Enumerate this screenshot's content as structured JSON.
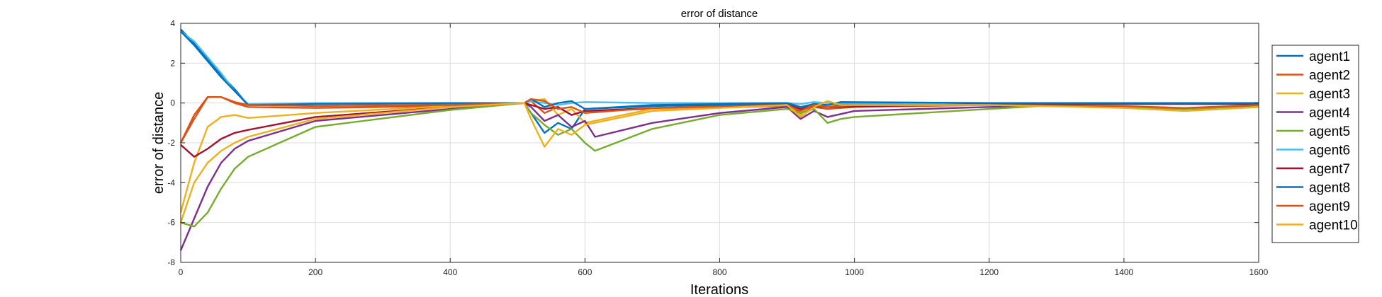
{
  "chart_data": {
    "type": "line",
    "title": "error of distance",
    "xlabel": "Iterations",
    "ylabel": "error of distance",
    "xlim": [
      0,
      1600
    ],
    "ylim": [
      -8,
      4
    ],
    "xticks": [
      "0",
      "200",
      "400",
      "600",
      "800",
      "1000",
      "1200",
      "1400",
      "1600"
    ],
    "yticks": [
      "4",
      "2",
      "0",
      "-2",
      "-4",
      "-6",
      "-8"
    ],
    "grid": true,
    "legend_position": "right",
    "series": [
      {
        "name": "agent1",
        "color": "#0072BD",
        "points": [
          [
            0,
            3.7
          ],
          [
            20,
            3.0
          ],
          [
            40,
            2.2
          ],
          [
            60,
            1.4
          ],
          [
            80,
            0.7
          ],
          [
            100,
            -0.1
          ],
          [
            200,
            -0.05
          ],
          [
            400,
            -0.02
          ],
          [
            510,
            0.0
          ],
          [
            520,
            -0.5
          ],
          [
            540,
            -1.5
          ],
          [
            560,
            -1.0
          ],
          [
            580,
            -1.3
          ],
          [
            600,
            -0.3
          ],
          [
            700,
            -0.15
          ],
          [
            900,
            -0.05
          ],
          [
            920,
            -0.3
          ],
          [
            940,
            -0.1
          ],
          [
            960,
            -0.2
          ],
          [
            980,
            -0.05
          ],
          [
            1200,
            0.0
          ],
          [
            1400,
            0.0
          ],
          [
            1600,
            0.0
          ]
        ]
      },
      {
        "name": "agent2",
        "color": "#D95319",
        "points": [
          [
            0,
            -2.0
          ],
          [
            20,
            -0.8
          ],
          [
            40,
            0.3
          ],
          [
            60,
            0.3
          ],
          [
            80,
            0.0
          ],
          [
            100,
            -0.2
          ],
          [
            200,
            -0.25
          ],
          [
            400,
            -0.15
          ],
          [
            510,
            0.0
          ],
          [
            520,
            0.1
          ],
          [
            540,
            -0.5
          ],
          [
            560,
            -0.2
          ],
          [
            580,
            -0.6
          ],
          [
            600,
            -0.4
          ],
          [
            700,
            -0.3
          ],
          [
            900,
            -0.15
          ],
          [
            920,
            -0.5
          ],
          [
            940,
            -0.2
          ],
          [
            960,
            -0.3
          ],
          [
            1000,
            -0.2
          ],
          [
            1200,
            -0.1
          ],
          [
            1400,
            -0.2
          ],
          [
            1490,
            -0.3
          ],
          [
            1600,
            -0.1
          ]
        ]
      },
      {
        "name": "agent3",
        "color": "#EDB120",
        "points": [
          [
            0,
            -5.5
          ],
          [
            20,
            -3.0
          ],
          [
            40,
            -1.2
          ],
          [
            60,
            -0.7
          ],
          [
            80,
            -0.6
          ],
          [
            100,
            -0.75
          ],
          [
            200,
            -0.5
          ],
          [
            400,
            -0.15
          ],
          [
            510,
            0.0
          ],
          [
            520,
            0.1
          ],
          [
            540,
            0.2
          ],
          [
            560,
            -0.6
          ],
          [
            580,
            -0.3
          ],
          [
            600,
            -1.0
          ],
          [
            700,
            -0.3
          ],
          [
            900,
            -0.1
          ],
          [
            920,
            -0.6
          ],
          [
            940,
            0.05
          ],
          [
            960,
            -0.2
          ],
          [
            980,
            0.05
          ],
          [
            1200,
            -0.05
          ],
          [
            1400,
            -0.2
          ],
          [
            1490,
            -0.4
          ],
          [
            1600,
            -0.2
          ]
        ]
      },
      {
        "name": "agent4",
        "color": "#7E2F8E",
        "points": [
          [
            0,
            -7.4
          ],
          [
            20,
            -5.8
          ],
          [
            40,
            -4.2
          ],
          [
            60,
            -3.0
          ],
          [
            80,
            -2.3
          ],
          [
            100,
            -1.9
          ],
          [
            200,
            -0.9
          ],
          [
            400,
            -0.3
          ],
          [
            510,
            0.0
          ],
          [
            520,
            -0.2
          ],
          [
            540,
            -0.9
          ],
          [
            560,
            -0.6
          ],
          [
            580,
            -1.2
          ],
          [
            600,
            -0.9
          ],
          [
            615,
            -1.7
          ],
          [
            700,
            -1.0
          ],
          [
            800,
            -0.5
          ],
          [
            900,
            -0.2
          ],
          [
            920,
            -0.8
          ],
          [
            940,
            -0.4
          ],
          [
            960,
            -0.7
          ],
          [
            1000,
            -0.4
          ],
          [
            1200,
            -0.2
          ],
          [
            1300,
            -0.1
          ],
          [
            1400,
            -0.2
          ],
          [
            1490,
            -0.3
          ],
          [
            1600,
            -0.2
          ]
        ]
      },
      {
        "name": "agent5",
        "color": "#77AC30",
        "points": [
          [
            0,
            -6.0
          ],
          [
            20,
            -6.2
          ],
          [
            40,
            -5.5
          ],
          [
            60,
            -4.3
          ],
          [
            80,
            -3.3
          ],
          [
            100,
            -2.7
          ],
          [
            200,
            -1.2
          ],
          [
            400,
            -0.35
          ],
          [
            510,
            0.0
          ],
          [
            520,
            -0.5
          ],
          [
            540,
            -1.1
          ],
          [
            560,
            -1.6
          ],
          [
            580,
            -1.3
          ],
          [
            600,
            -2.0
          ],
          [
            615,
            -2.4
          ],
          [
            700,
            -1.3
          ],
          [
            800,
            -0.6
          ],
          [
            900,
            -0.3
          ],
          [
            920,
            -0.5
          ],
          [
            940,
            -0.3
          ],
          [
            960,
            -1.0
          ],
          [
            980,
            -0.8
          ],
          [
            1000,
            -0.7
          ],
          [
            1200,
            -0.3
          ],
          [
            1300,
            -0.1
          ],
          [
            1400,
            -0.2
          ],
          [
            1490,
            -0.3
          ],
          [
            1600,
            -0.2
          ]
        ]
      },
      {
        "name": "agent6",
        "color": "#4DBEEE",
        "points": [
          [
            0,
            3.6
          ],
          [
            20,
            3.1
          ],
          [
            40,
            2.3
          ],
          [
            60,
            1.5
          ],
          [
            80,
            0.6
          ],
          [
            100,
            -0.05
          ],
          [
            200,
            0.0
          ],
          [
            400,
            0.0
          ],
          [
            510,
            0.0
          ],
          [
            520,
            0.1
          ],
          [
            540,
            0.0
          ],
          [
            560,
            -0.1
          ],
          [
            580,
            0.0
          ],
          [
            600,
            0.05
          ],
          [
            700,
            0.0
          ],
          [
            900,
            0.0
          ],
          [
            920,
            -0.05
          ],
          [
            940,
            0.05
          ],
          [
            960,
            0.0
          ],
          [
            1200,
            0.0
          ],
          [
            1600,
            0.0
          ]
        ]
      },
      {
        "name": "agent7",
        "color": "#A2142F",
        "points": [
          [
            0,
            -2.1
          ],
          [
            20,
            -2.7
          ],
          [
            40,
            -2.3
          ],
          [
            60,
            -1.8
          ],
          [
            80,
            -1.5
          ],
          [
            100,
            -1.35
          ],
          [
            200,
            -0.7
          ],
          [
            400,
            -0.2
          ],
          [
            510,
            0.0
          ],
          [
            520,
            -0.1
          ],
          [
            540,
            -0.3
          ],
          [
            560,
            -0.2
          ],
          [
            580,
            -0.6
          ],
          [
            600,
            -0.4
          ],
          [
            700,
            -0.25
          ],
          [
            900,
            -0.1
          ],
          [
            920,
            -0.3
          ],
          [
            940,
            -0.15
          ],
          [
            960,
            -0.2
          ],
          [
            1200,
            -0.05
          ],
          [
            1600,
            -0.05
          ]
        ]
      },
      {
        "name": "agent8",
        "color": "#0072BD",
        "points": [
          [
            0,
            3.6
          ],
          [
            20,
            2.9
          ],
          [
            40,
            2.1
          ],
          [
            60,
            1.3
          ],
          [
            80,
            0.6
          ],
          [
            100,
            -0.1
          ],
          [
            200,
            -0.05
          ],
          [
            400,
            0.0
          ],
          [
            510,
            0.0
          ],
          [
            520,
            0.2
          ],
          [
            540,
            -0.2
          ],
          [
            560,
            0.0
          ],
          [
            580,
            0.1
          ],
          [
            600,
            -0.3
          ],
          [
            700,
            -0.1
          ],
          [
            900,
            0.0
          ],
          [
            920,
            -0.2
          ],
          [
            940,
            -0.05
          ],
          [
            960,
            -0.1
          ],
          [
            980,
            0.05
          ],
          [
            1200,
            0.0
          ],
          [
            1600,
            0.0
          ]
        ]
      },
      {
        "name": "agent9",
        "color": "#D95319",
        "points": [
          [
            0,
            -2.0
          ],
          [
            20,
            -0.6
          ],
          [
            40,
            0.3
          ],
          [
            60,
            0.3
          ],
          [
            80,
            0.05
          ],
          [
            100,
            -0.1
          ],
          [
            200,
            -0.15
          ],
          [
            400,
            -0.1
          ],
          [
            510,
            0.0
          ],
          [
            520,
            0.2
          ],
          [
            540,
            0.1
          ],
          [
            560,
            -0.3
          ],
          [
            580,
            -0.2
          ],
          [
            600,
            -0.5
          ],
          [
            700,
            -0.25
          ],
          [
            900,
            -0.1
          ],
          [
            920,
            -0.4
          ],
          [
            940,
            -0.1
          ],
          [
            960,
            -0.2
          ],
          [
            1000,
            -0.1
          ],
          [
            1200,
            -0.1
          ],
          [
            1400,
            -0.15
          ],
          [
            1490,
            -0.25
          ],
          [
            1600,
            -0.1
          ]
        ]
      },
      {
        "name": "agent10",
        "color": "#EDB120",
        "points": [
          [
            0,
            -6.0
          ],
          [
            20,
            -4.0
          ],
          [
            40,
            -3.0
          ],
          [
            60,
            -2.4
          ],
          [
            80,
            -2.0
          ],
          [
            100,
            -1.7
          ],
          [
            200,
            -0.8
          ],
          [
            400,
            -0.2
          ],
          [
            510,
            0.0
          ],
          [
            520,
            -0.8
          ],
          [
            540,
            -2.2
          ],
          [
            560,
            -1.3
          ],
          [
            580,
            -1.6
          ],
          [
            600,
            -1.1
          ],
          [
            700,
            -0.4
          ],
          [
            900,
            -0.1
          ],
          [
            920,
            -0.7
          ],
          [
            940,
            -0.2
          ],
          [
            960,
            0.1
          ],
          [
            980,
            -0.1
          ],
          [
            1200,
            -0.1
          ],
          [
            1400,
            -0.25
          ],
          [
            1490,
            -0.4
          ],
          [
            1600,
            -0.2
          ]
        ]
      }
    ]
  }
}
